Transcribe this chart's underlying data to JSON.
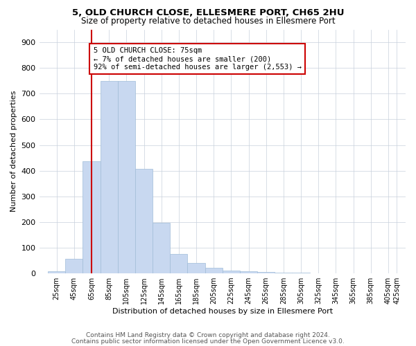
{
  "title1": "5, OLD CHURCH CLOSE, ELLESMERE PORT, CH65 2HU",
  "title2": "Size of property relative to detached houses in Ellesmere Port",
  "xlabel": "Distribution of detached houses by size in Ellesmere Port",
  "ylabel": "Number of detached properties",
  "footnote1": "Contains HM Land Registry data © Crown copyright and database right 2024.",
  "footnote2": "Contains public sector information licensed under the Open Government Licence v3.0.",
  "bar_color": "#c8d8f0",
  "bar_edge_color": "#a0bcd8",
  "grid_color": "#c8d0dc",
  "annotation_box_color": "#cc0000",
  "annotation_line_color": "#cc0000",
  "property_sqm": 75,
  "annotation_text": "5 OLD CHURCH CLOSE: 75sqm\n← 7% of detached houses are smaller (200)\n92% of semi-detached houses are larger (2,553) →",
  "bins_left": [
    25,
    45,
    65,
    85,
    105,
    125,
    145,
    165,
    185,
    205,
    225,
    245,
    265,
    285,
    305,
    325,
    345,
    365,
    385,
    405
  ],
  "heights": [
    8,
    58,
    438,
    750,
    750,
    408,
    198,
    75,
    40,
    22,
    10,
    8,
    5,
    3,
    2,
    1,
    1,
    0,
    0,
    0
  ],
  "xtick_labels": [
    "25sqm",
    "45sqm",
    "65sqm",
    "85sqm",
    "105sqm",
    "125sqm",
    "145sqm",
    "165sqm",
    "185sqm",
    "205sqm",
    "225sqm",
    "245sqm",
    "265sqm",
    "285sqm",
    "305sqm",
    "325sqm",
    "345sqm",
    "365sqm",
    "385sqm",
    "405sqm",
    "425sqm"
  ],
  "ylim": [
    0,
    950
  ],
  "yticks": [
    0,
    100,
    200,
    300,
    400,
    500,
    600,
    700,
    800,
    900
  ]
}
